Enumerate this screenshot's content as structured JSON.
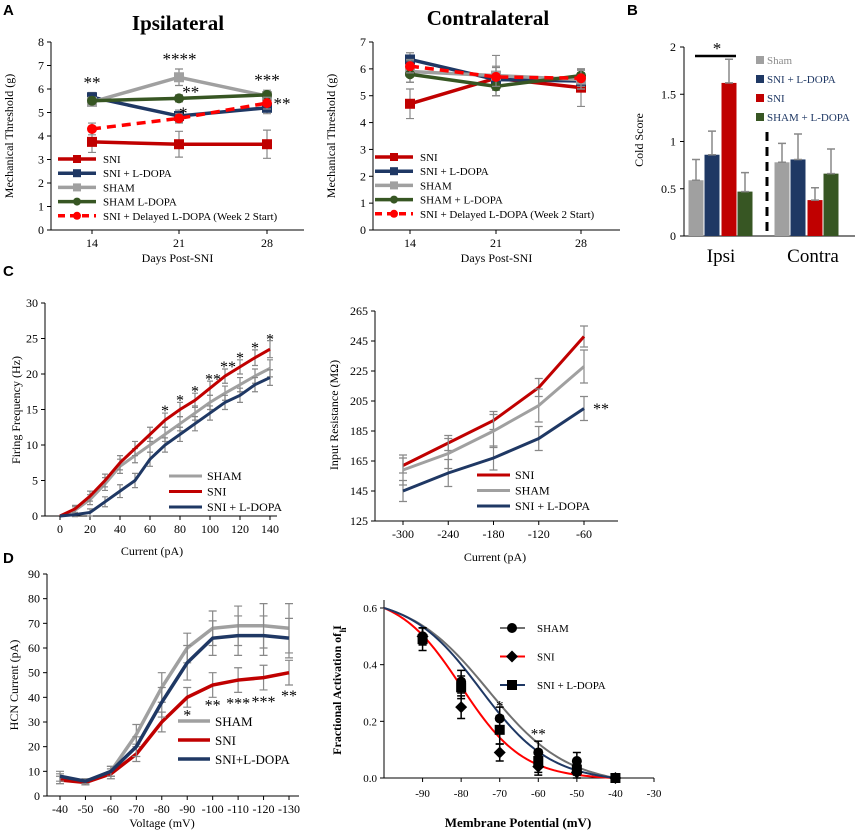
{
  "colors": {
    "sni": "#c00000",
    "sni_ldopa": "#1f3864",
    "sham": "#a0a0a0",
    "sham_ldopa": "#375623",
    "delayed": "#ff0000",
    "black": "#000000"
  },
  "panels": [
    {
      "id": "A",
      "label": "A"
    },
    {
      "id": "B",
      "label": "B"
    },
    {
      "id": "C",
      "label": "C"
    },
    {
      "id": "D",
      "label": "D"
    }
  ],
  "chart_data": [
    {
      "id": "A1",
      "type": "line",
      "title": "Ipsilateral",
      "xlabel": "Days Post-SNI",
      "ylabel": "Mechanical Threshold (g)",
      "x": [
        14,
        21,
        28
      ],
      "xticks": [
        "14",
        "21",
        "28"
      ],
      "ylim": [
        0,
        8
      ],
      "yticks": [
        0,
        1,
        2,
        3,
        4,
        5,
        6,
        7,
        8
      ],
      "series": [
        {
          "name": "SNI",
          "key": "sni",
          "values": [
            3.75,
            3.65,
            3.65
          ],
          "err": [
            0.45,
            0.55,
            0.6
          ],
          "marker": "square",
          "dash": false
        },
        {
          "name": "SNI + L-DOPA",
          "key": "sni_ldopa",
          "values": [
            5.65,
            4.85,
            5.2
          ],
          "err": [
            0.2,
            0.25,
            0.25
          ],
          "marker": "square",
          "dash": false
        },
        {
          "name": "SHAM",
          "key": "sham",
          "values": [
            5.45,
            6.5,
            5.7
          ],
          "err": [
            0.15,
            0.35,
            0.15
          ],
          "marker": "square",
          "dash": false
        },
        {
          "name": "SHAM L-DOPA",
          "key": "sham_ldopa",
          "values": [
            5.5,
            5.6,
            5.75
          ],
          "err": [
            0.15,
            0.15,
            0.2
          ],
          "marker": "circle",
          "dash": false
        },
        {
          "name": "SNI + Delayed L-DOPA (Week 2 Start)",
          "key": "delayed",
          "values": [
            4.3,
            4.75,
            5.4
          ],
          "err": [
            0.25,
            0.2,
            0.25
          ],
          "marker": "circle",
          "dash": true
        }
      ],
      "annotations": [
        {
          "text": "**",
          "x": 14,
          "y": 6.3
        },
        {
          "text": "****",
          "x": 21,
          "y": 7.3
        },
        {
          "text": "**",
          "x": 21.9,
          "y": 5.9
        },
        {
          "text": "*",
          "x": 21.3,
          "y": 5.0
        },
        {
          "text": "***",
          "x": 28,
          "y": 6.4
        },
        {
          "text": "**",
          "x": 29.2,
          "y": 5.4
        }
      ]
    },
    {
      "id": "A2",
      "type": "line",
      "title": "Contralateral",
      "xlabel": "Days Post-SNI",
      "ylabel": "Mechanical Threshold (g)",
      "x": [
        14,
        21,
        28
      ],
      "xticks": [
        "14",
        "21",
        "28"
      ],
      "ylim": [
        0,
        7
      ],
      "yticks": [
        0,
        1,
        2,
        3,
        4,
        5,
        6,
        7
      ],
      "series": [
        {
          "name": "SNI",
          "key": "sni",
          "values": [
            4.7,
            5.65,
            5.3
          ],
          "err": [
            0.55,
            0.45,
            0.7
          ],
          "marker": "square",
          "dash": false
        },
        {
          "name": "SNI + L-DOPA",
          "key": "sni_ldopa",
          "values": [
            6.35,
            5.6,
            5.55
          ],
          "err": [
            0.25,
            0.25,
            0.3
          ],
          "marker": "square",
          "dash": false
        },
        {
          "name": "SHAM",
          "key": "sham",
          "values": [
            5.9,
            5.75,
            5.6
          ],
          "err": [
            0.4,
            0.75,
            0.35
          ],
          "marker": "square",
          "dash": false
        },
        {
          "name": "SHAM + L-DOPA",
          "key": "sham_ldopa",
          "values": [
            5.8,
            5.35,
            5.75
          ],
          "err": [
            0.3,
            0.35,
            0.25
          ],
          "marker": "circle",
          "dash": false
        },
        {
          "name": "SNI + Delayed L-DOPA (Week 2 Start)",
          "key": "delayed",
          "values": [
            6.1,
            5.7,
            5.65
          ],
          "err": [
            0.25,
            0.35,
            0.3
          ],
          "marker": "circle",
          "dash": true
        }
      ],
      "annotations": []
    },
    {
      "id": "B",
      "type": "bar",
      "ylabel": "Cold Score",
      "ylim": [
        0,
        2
      ],
      "yticks": [
        "0",
        "0.5",
        "1",
        "1.5",
        "2"
      ],
      "groups": [
        "Ipsi",
        "Contra"
      ],
      "series": [
        {
          "name": "Sham",
          "key": "sham",
          "values": [
            0.59,
            0.78
          ],
          "err": [
            0.22,
            0.2
          ]
        },
        {
          "name": "SNI + L-DOPA",
          "key": "sni_ldopa",
          "values": [
            0.86,
            0.81
          ],
          "err": [
            0.25,
            0.27
          ]
        },
        {
          "name": "SNI",
          "key": "sni",
          "values": [
            1.62,
            0.38
          ],
          "err": [
            0.25,
            0.13
          ]
        },
        {
          "name": "SHAM + L-DOPA",
          "key": "sham_ldopa",
          "values": [
            0.47,
            0.66
          ],
          "err": [
            0.2,
            0.26
          ]
        }
      ],
      "annotations": [
        {
          "text": "*"
        }
      ]
    },
    {
      "id": "C1",
      "type": "line",
      "xlabel": "Current (pA)",
      "ylabel": "Firing Frequency (Hz)",
      "x": [
        0,
        10,
        20,
        30,
        40,
        50,
        60,
        70,
        80,
        90,
        100,
        110,
        120,
        130,
        140
      ],
      "xticks": [
        "0",
        "20",
        "40",
        "60",
        "80",
        "100",
        "120",
        "140"
      ],
      "ylim": [
        0,
        30
      ],
      "yticks": [
        "0",
        "5",
        "10",
        "15",
        "20",
        "25",
        "30"
      ],
      "series": [
        {
          "name": "SHAM",
          "key": "sham",
          "values": [
            0,
            0.8,
            2.3,
            4.5,
            7,
            8.5,
            10,
            11.5,
            13,
            14.5,
            16,
            17.3,
            18.5,
            19.7,
            20.8
          ],
          "err": [
            0,
            0.5,
            0.7,
            0.9,
            1,
            1,
            1,
            1,
            1,
            1,
            1,
            1,
            1,
            1,
            1.2
          ]
        },
        {
          "name": "SNI",
          "key": "sni",
          "values": [
            0,
            1,
            2.8,
            5,
            7.5,
            9.5,
            11.5,
            13.5,
            15,
            16.3,
            18,
            19.7,
            21,
            22.3,
            23.5
          ],
          "err": [
            0,
            0.5,
            0.7,
            0.9,
            1,
            1,
            1,
            1,
            1,
            1,
            1,
            1,
            1,
            1.1,
            1.2
          ]
        },
        {
          "name": "SNI + L-DOPA",
          "key": "sni_ldopa",
          "values": [
            0,
            0.2,
            0.5,
            2,
            3.5,
            5,
            8,
            10,
            11.5,
            13,
            14.5,
            16,
            17,
            18.5,
            19.5
          ],
          "err": [
            0,
            0.3,
            0.5,
            0.7,
            0.9,
            1,
            1,
            1,
            1,
            1,
            1,
            1,
            1,
            1,
            1.1
          ]
        }
      ],
      "annotations": [
        {
          "text": "*",
          "x": 70,
          "y": 14.9
        },
        {
          "text": "*",
          "x": 80,
          "y": 16.4
        },
        {
          "text": "*",
          "x": 90,
          "y": 17.7
        },
        {
          "text": "**",
          "x": 102,
          "y": 19.4
        },
        {
          "text": "**",
          "x": 112,
          "y": 21.1
        },
        {
          "text": "*",
          "x": 120,
          "y": 22.4
        },
        {
          "text": "*",
          "x": 130,
          "y": 23.8
        },
        {
          "text": "*",
          "x": 140,
          "y": 25
        }
      ]
    },
    {
      "id": "C2",
      "type": "line",
      "xlabel": "Current (pA)",
      "ylabel": "Input Resistance (MΩ)",
      "x": [
        -300,
        -240,
        -180,
        -120,
        -60
      ],
      "xticks": [
        "-300",
        "-240",
        "-180",
        "-120",
        "-60"
      ],
      "ylim": [
        125,
        265
      ],
      "yticks": [
        "125",
        "145",
        "165",
        "185",
        "205",
        "225",
        "245",
        "265"
      ],
      "series": [
        {
          "name": "SNI",
          "key": "sni",
          "values": [
            162,
            177,
            192,
            214,
            248
          ],
          "err": [
            5,
            5,
            6,
            6,
            7
          ]
        },
        {
          "name": "SHAM",
          "key": "sham",
          "values": [
            159,
            170,
            185,
            202,
            228
          ],
          "err": [
            10,
            10,
            11,
            11,
            11
          ]
        },
        {
          "name": "SNI + L-DOPA",
          "key": "sni_ldopa",
          "values": [
            145,
            157,
            167,
            180,
            200
          ],
          "err": [
            7,
            9,
            8,
            8,
            8
          ]
        }
      ],
      "annotations": [
        {
          "text": "**",
          "x": -48,
          "y": 199
        }
      ]
    },
    {
      "id": "D1",
      "type": "line",
      "xlabel": "Voltage (mV)",
      "ylabel": "HCN Current (pA)",
      "x": [
        "-40",
        "-50",
        "-60",
        "-70",
        "-80",
        "-90",
        "-100",
        "-110",
        "-120",
        "-130"
      ],
      "ylim": [
        0,
        90
      ],
      "yticks": [
        "0",
        "10",
        "20",
        "30",
        "40",
        "50",
        "60",
        "70",
        "80",
        "90"
      ],
      "series": [
        {
          "name": "SHAM",
          "key": "sham",
          "values": [
            7,
            5.5,
            10,
            25,
            44,
            60,
            68,
            69,
            69,
            68
          ],
          "err": [
            2,
            1,
            2,
            4,
            6,
            6,
            7,
            8,
            9,
            10
          ]
        },
        {
          "name": "SNI",
          "key": "sni",
          "values": [
            6.5,
            5.5,
            9,
            17,
            30,
            40,
            45,
            47,
            48,
            50
          ],
          "err": [
            1.5,
            1,
            2,
            3,
            4,
            4,
            5,
            5,
            5,
            5
          ]
        },
        {
          "name": "SNI+L-DOPA",
          "key": "sni_ldopa",
          "values": [
            8,
            6,
            10,
            20,
            38,
            54,
            64,
            65,
            65,
            64
          ],
          "err": [
            2,
            1,
            2,
            4,
            6,
            7,
            7,
            8,
            8,
            8
          ]
        }
      ],
      "annotations": [
        {
          "text": "*",
          "i": 5,
          "y": 33
        },
        {
          "text": "**",
          "i": 6,
          "y": 37
        },
        {
          "text": "***",
          "i": 7,
          "y": 38
        },
        {
          "text": "***",
          "i": 8,
          "y": 38.5
        },
        {
          "text": "**",
          "i": 9,
          "y": 41
        }
      ]
    },
    {
      "id": "D2",
      "type": "scatter",
      "xlabel": "Membrane Potential (mV)",
      "ylabel": "Fractional  Activation of I",
      "ylabel_sub": "h",
      "xlim": [
        -100,
        -30
      ],
      "xticks": [
        "-90",
        "-80",
        "-70",
        "-60",
        "-50",
        "-40",
        "-30"
      ],
      "ylim": [
        0,
        0.6
      ],
      "yticks": [
        "0.0",
        "0.2",
        "0.4",
        "0.6"
      ],
      "fit_vhalf": {
        "sham": -73,
        "sni": -80,
        "sni_ldopa": -75
      },
      "fit_k": {
        "sham": 10,
        "sni": 8,
        "sni_ldopa": 9
      },
      "series": [
        {
          "name": "SHAM",
          "key": "sham",
          "marker": "circle",
          "x": [
            -90,
            -80,
            -70,
            -60,
            -50,
            -40
          ],
          "values": [
            0.5,
            0.34,
            0.21,
            0.09,
            0.06,
            0.0
          ],
          "err": [
            0.03,
            0.04,
            0.04,
            0.04,
            0.03,
            0.01
          ]
        },
        {
          "name": "SNI",
          "key": "sni",
          "marker": "diamond",
          "x": [
            -90,
            -80,
            -70,
            -60,
            -50,
            -40
          ],
          "values": [
            0.5,
            0.25,
            0.09,
            0.04,
            0.02,
            0.0
          ],
          "err": [
            0.03,
            0.04,
            0.03,
            0.03,
            0.02,
            0.01
          ]
        },
        {
          "name": "SNI + L-DOPA",
          "key": "sni_ldopa",
          "marker": "square",
          "x": [
            -90,
            -80,
            -70,
            -60,
            -50,
            -40
          ],
          "values": [
            0.49,
            0.32,
            0.17,
            0.06,
            0.03,
            0.0
          ],
          "err": [
            0.04,
            0.04,
            0.05,
            0.04,
            0.02,
            0.01
          ]
        }
      ],
      "annotations": [
        {
          "text": "*",
          "x": -70,
          "y": 0.26
        },
        {
          "text": "**",
          "x": -60,
          "y": 0.16
        }
      ]
    }
  ]
}
